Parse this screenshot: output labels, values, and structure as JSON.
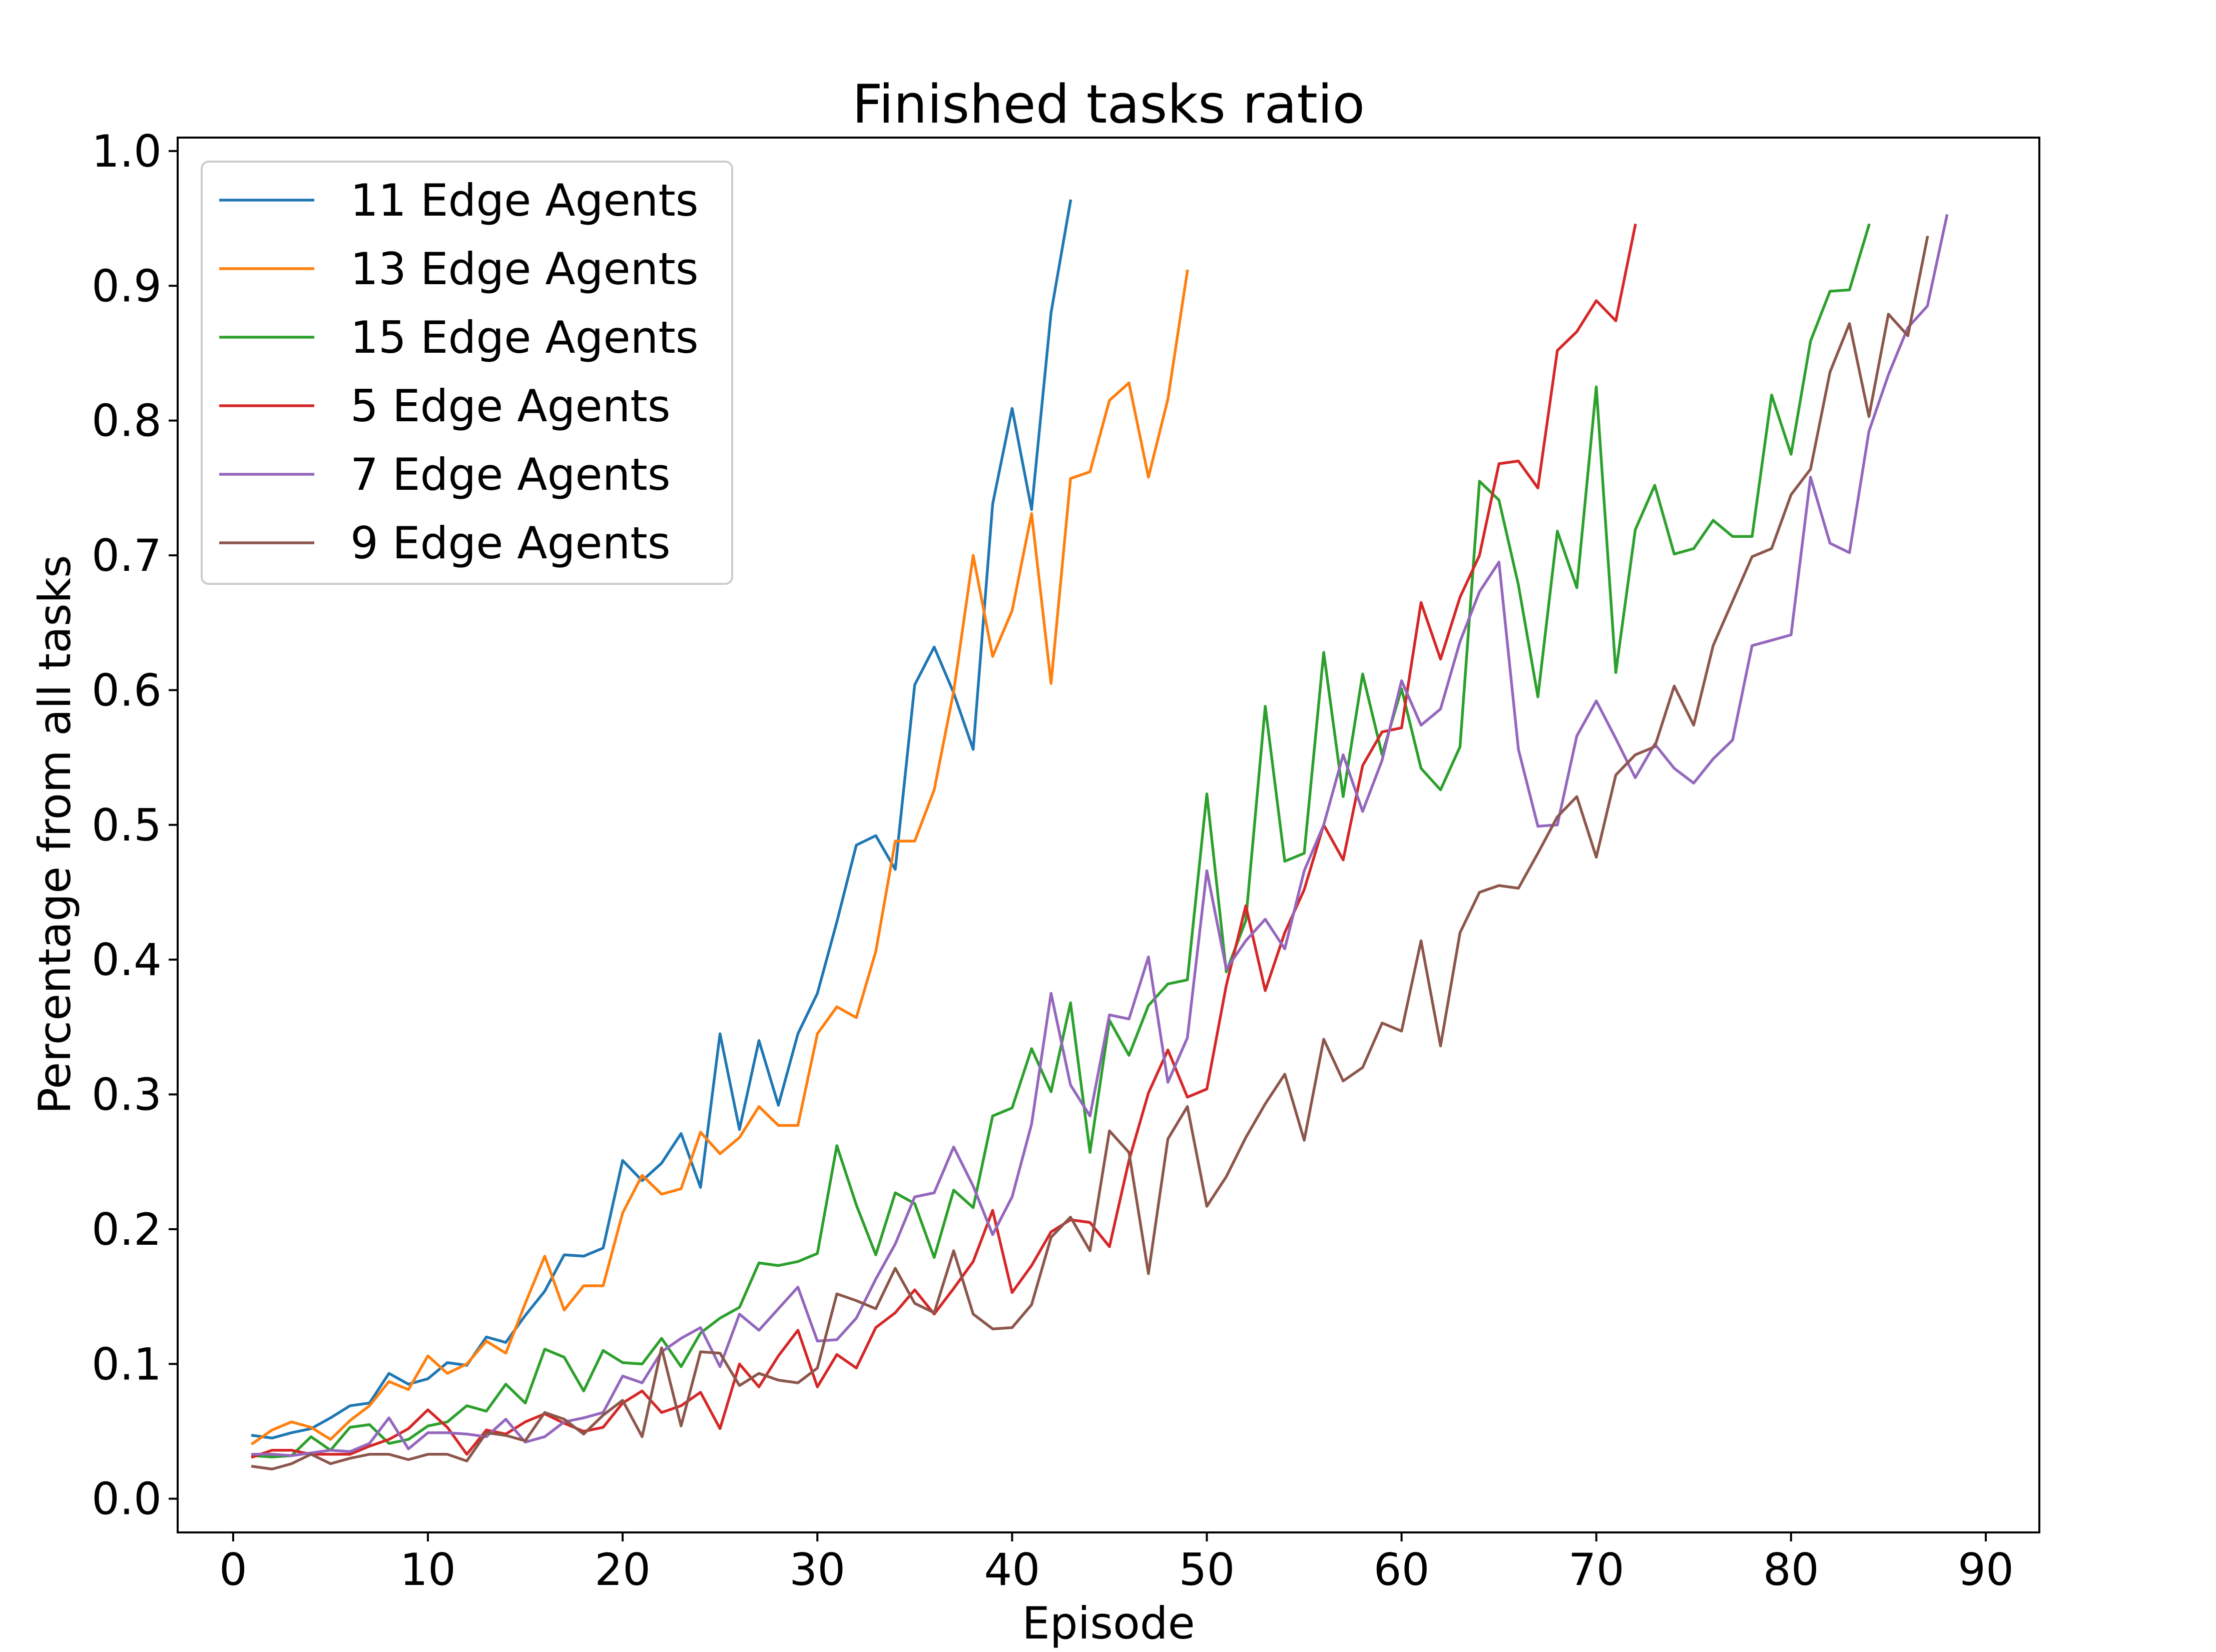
{
  "chart_data": {
    "type": "line",
    "title": "Finished tasks ratio",
    "xlabel": "Episode",
    "ylabel": "Percentage from all tasks",
    "xlim": [
      -2.85,
      92.75
    ],
    "ylim": [
      -0.025,
      1.01
    ],
    "xticks": [
      0,
      10,
      20,
      30,
      40,
      50,
      60,
      70,
      80,
      90
    ],
    "yticks": [
      0.0,
      0.1,
      0.2,
      0.3,
      0.4,
      0.5,
      0.6,
      0.7,
      0.8,
      0.9,
      1.0
    ],
    "xtick_labels": [
      "0",
      "10",
      "20",
      "30",
      "40",
      "50",
      "60",
      "70",
      "80",
      "90"
    ],
    "ytick_labels": [
      "0.0",
      "0.1",
      "0.2",
      "0.3",
      "0.4",
      "0.5",
      "0.6",
      "0.7",
      "0.8",
      "0.9",
      "1.0"
    ],
    "grid": false,
    "legend_position": "top-left",
    "series": [
      {
        "name": "11 Edge Agents",
        "color": "#1f77b4",
        "x_start": 1,
        "values": [
          0.047,
          0.045,
          0.049,
          0.052,
          0.06,
          0.069,
          0.071,
          0.093,
          0.085,
          0.089,
          0.101,
          0.099,
          0.12,
          0.116,
          0.136,
          0.154,
          0.181,
          0.18,
          0.186,
          0.251,
          0.236,
          0.249,
          0.271,
          0.231,
          0.345,
          0.274,
          0.34,
          0.292,
          0.345,
          0.375,
          0.428,
          0.485,
          0.492,
          0.467,
          0.604,
          0.632,
          0.598,
          0.556,
          0.738,
          0.809,
          0.734,
          0.88,
          0.963
        ]
      },
      {
        "name": "13 Edge Agents",
        "color": "#ff7f0e",
        "x_start": 1,
        "values": [
          0.041,
          0.051,
          0.057,
          0.053,
          0.044,
          0.058,
          0.069,
          0.087,
          0.081,
          0.106,
          0.093,
          0.1,
          0.117,
          0.108,
          0.145,
          0.18,
          0.14,
          0.158,
          0.158,
          0.212,
          0.24,
          0.226,
          0.23,
          0.272,
          0.256,
          0.268,
          0.291,
          0.277,
          0.277,
          0.345,
          0.365,
          0.357,
          0.406,
          0.488,
          0.488,
          0.526,
          0.599,
          0.7,
          0.625,
          0.659,
          0.731,
          0.605,
          0.757,
          0.762,
          0.815,
          0.828,
          0.758,
          0.816,
          0.911
        ]
      },
      {
        "name": "15 Edge Agents",
        "color": "#2ca02c",
        "x_start": 1,
        "values": [
          0.032,
          0.031,
          0.032,
          0.046,
          0.036,
          0.053,
          0.055,
          0.041,
          0.044,
          0.054,
          0.057,
          0.069,
          0.065,
          0.085,
          0.071,
          0.111,
          0.105,
          0.08,
          0.11,
          0.101,
          0.1,
          0.119,
          0.098,
          0.123,
          0.134,
          0.142,
          0.175,
          0.173,
          0.176,
          0.182,
          0.262,
          0.218,
          0.181,
          0.227,
          0.219,
          0.179,
          0.229,
          0.216,
          0.284,
          0.29,
          0.334,
          0.302,
          0.368,
          0.257,
          0.355,
          0.329,
          0.366,
          0.382,
          0.385,
          0.523,
          0.391,
          0.429,
          0.588,
          0.473,
          0.479,
          0.628,
          0.521,
          0.612,
          0.552,
          0.601,
          0.542,
          0.526,
          0.558,
          0.755,
          0.741,
          0.678,
          0.595,
          0.718,
          0.676,
          0.825,
          0.613,
          0.719,
          0.752,
          0.701,
          0.705,
          0.726,
          0.714,
          0.714,
          0.819,
          0.775,
          0.859,
          0.896,
          0.897,
          0.945
        ]
      },
      {
        "name": "5 Edge Agents",
        "color": "#d62728",
        "x_start": 1,
        "values": [
          0.031,
          0.036,
          0.036,
          0.033,
          0.033,
          0.033,
          0.039,
          0.044,
          0.052,
          0.066,
          0.053,
          0.033,
          0.051,
          0.048,
          0.057,
          0.063,
          0.056,
          0.05,
          0.053,
          0.071,
          0.08,
          0.064,
          0.069,
          0.079,
          0.052,
          0.1,
          0.083,
          0.106,
          0.125,
          0.083,
          0.107,
          0.097,
          0.127,
          0.138,
          0.155,
          0.137,
          0.156,
          0.176,
          0.214,
          0.153,
          0.173,
          0.198,
          0.207,
          0.205,
          0.187,
          0.251,
          0.301,
          0.333,
          0.298,
          0.304,
          0.381,
          0.44,
          0.377,
          0.42,
          0.452,
          0.5,
          0.474,
          0.544,
          0.569,
          0.572,
          0.665,
          0.623,
          0.669,
          0.7,
          0.768,
          0.77,
          0.75,
          0.852,
          0.866,
          0.889,
          0.874,
          0.945
        ]
      },
      {
        "name": "7 Edge Agents",
        "color": "#9467bd",
        "x_start": 1,
        "values": [
          0.033,
          0.033,
          0.032,
          0.034,
          0.036,
          0.035,
          0.041,
          0.06,
          0.037,
          0.049,
          0.049,
          0.048,
          0.046,
          0.059,
          0.042,
          0.046,
          0.057,
          0.06,
          0.064,
          0.091,
          0.086,
          0.109,
          0.119,
          0.127,
          0.098,
          0.137,
          0.125,
          0.141,
          0.157,
          0.117,
          0.118,
          0.134,
          0.163,
          0.189,
          0.224,
          0.227,
          0.261,
          0.232,
          0.196,
          0.224,
          0.278,
          0.375,
          0.307,
          0.284,
          0.359,
          0.356,
          0.402,
          0.309,
          0.342,
          0.466,
          0.393,
          0.414,
          0.43,
          0.408,
          0.466,
          0.5,
          0.552,
          0.51,
          0.548,
          0.607,
          0.574,
          0.586,
          0.636,
          0.673,
          0.695,
          0.556,
          0.499,
          0.5,
          0.566,
          0.592,
          0.564,
          0.535,
          0.56,
          0.542,
          0.531,
          0.549,
          0.563,
          0.633,
          0.637,
          0.641,
          0.758,
          0.709,
          0.702,
          0.792,
          0.834,
          0.869,
          0.885,
          0.952
        ]
      },
      {
        "name": "9 Edge Agents",
        "color": "#8c564b",
        "x_start": 1,
        "values": [
          0.024,
          0.022,
          0.026,
          0.033,
          0.026,
          0.03,
          0.033,
          0.033,
          0.029,
          0.033,
          0.033,
          0.028,
          0.049,
          0.047,
          0.043,
          0.064,
          0.059,
          0.048,
          0.062,
          0.073,
          0.046,
          0.112,
          0.054,
          0.109,
          0.108,
          0.084,
          0.093,
          0.088,
          0.086,
          0.097,
          0.152,
          0.147,
          0.141,
          0.171,
          0.145,
          0.138,
          0.184,
          0.137,
          0.126,
          0.127,
          0.144,
          0.194,
          0.209,
          0.184,
          0.273,
          0.257,
          0.167,
          0.267,
          0.291,
          0.217,
          0.239,
          0.268,
          0.293,
          0.315,
          0.266,
          0.341,
          0.31,
          0.32,
          0.353,
          0.347,
          0.414,
          0.336,
          0.42,
          0.45,
          0.455,
          0.453,
          0.479,
          0.506,
          0.521,
          0.476,
          0.537,
          0.552,
          0.558,
          0.603,
          0.574,
          0.633,
          0.666,
          0.699,
          0.705,
          0.745,
          0.764,
          0.836,
          0.872,
          0.803,
          0.879,
          0.863,
          0.936
        ]
      }
    ]
  }
}
